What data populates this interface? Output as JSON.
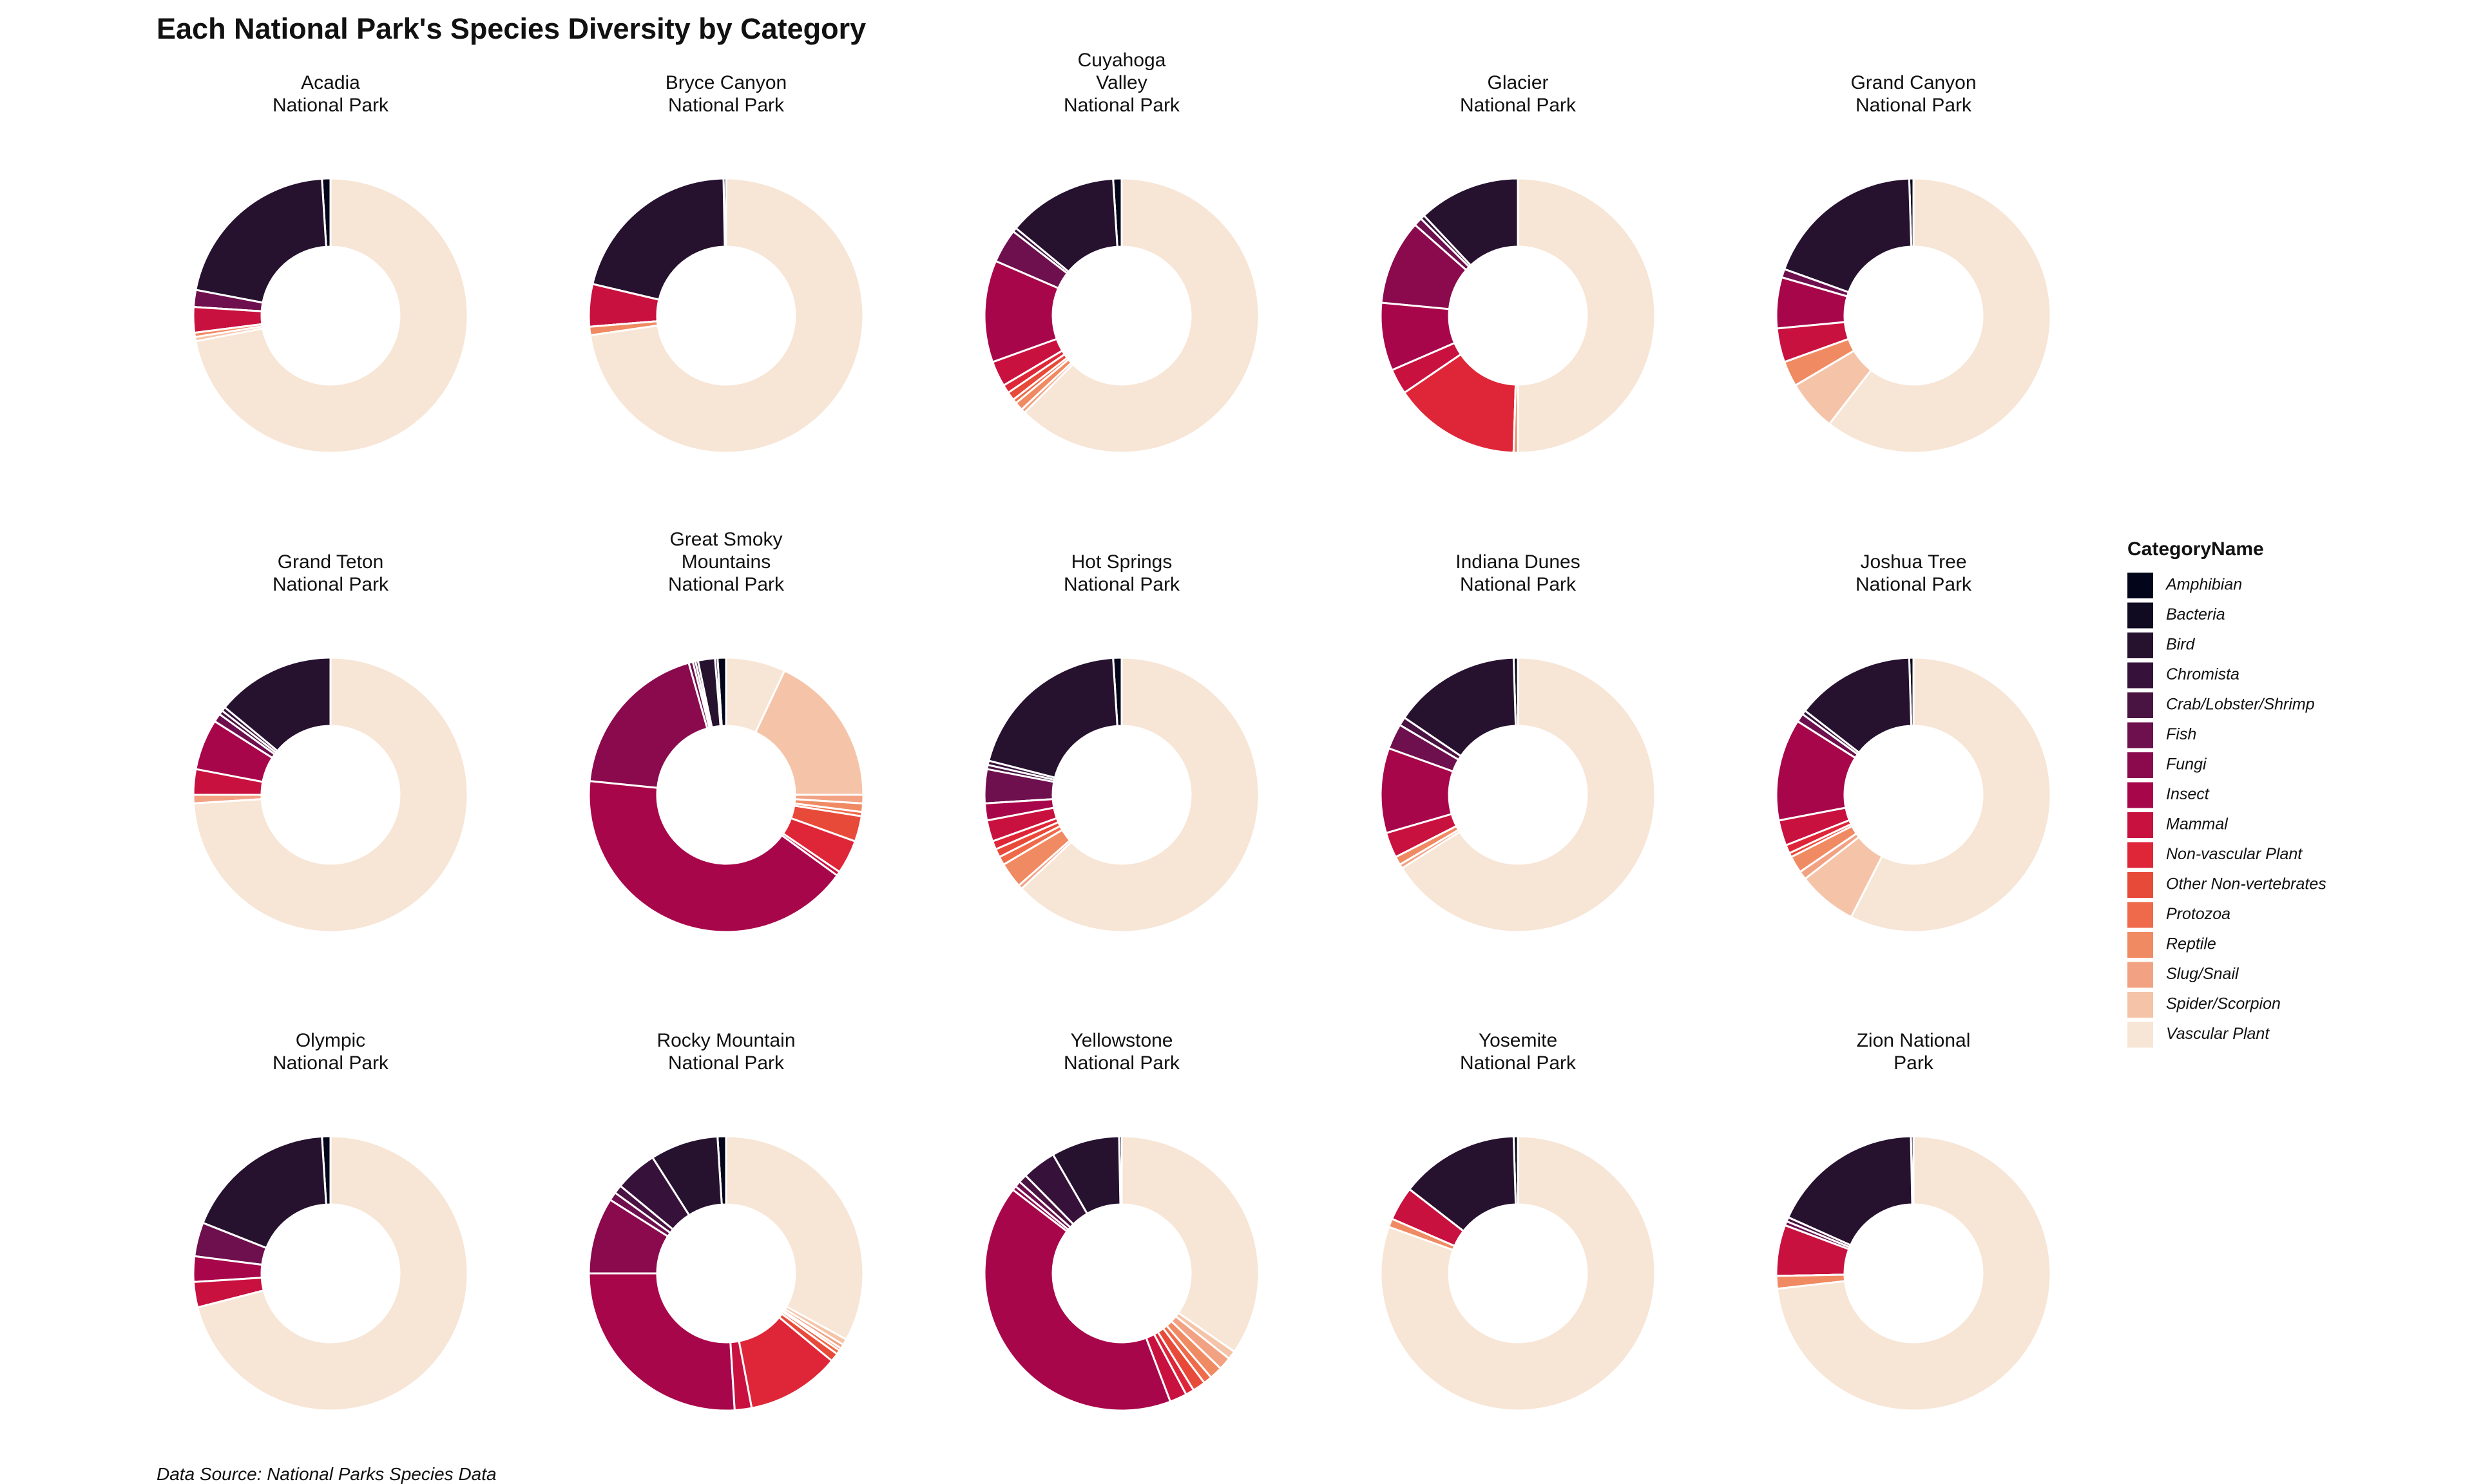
{
  "title": "Each National Park's Species Diversity by Category",
  "caption": "Data Source: National Parks Species Data",
  "legend_title": "CategoryName",
  "categories": [
    "Amphibian",
    "Bacteria",
    "Bird",
    "Chromista",
    "Crab/Lobster/Shrimp",
    "Fish",
    "Fungi",
    "Insect",
    "Mammal",
    "Non-vascular Plant",
    "Other Non-vertebrates",
    "Protozoa",
    "Reptile",
    "Slug/Snail",
    "Spider/Scorpion",
    "Vascular Plant"
  ],
  "colors": [
    "#03051A",
    "#110B21",
    "#26112F",
    "#36123A",
    "#4A1442",
    "#6E0F4E",
    "#8A0A4D",
    "#A8064A",
    "#C8113F",
    "#DE2638",
    "#E84A3A",
    "#EE6A4A",
    "#F08A62",
    "#F2A283",
    "#F5C4A8",
    "#F7E5D5"
  ],
  "chart_data": [
    {
      "type": "pie",
      "title": [
        "Acadia",
        "National Park"
      ],
      "values": [
        1,
        0,
        21,
        0,
        0,
        2,
        0,
        0,
        3,
        0,
        0,
        0,
        0.5,
        0,
        0.5,
        72
      ]
    },
    {
      "type": "pie",
      "title": [
        "Bryce Canyon",
        "National Park"
      ],
      "values": [
        0.3,
        0,
        21,
        0,
        0,
        0,
        0,
        0,
        5,
        0,
        0,
        0,
        1,
        0,
        0,
        72.7
      ]
    },
    {
      "type": "pie",
      "title": [
        "Cuyahoga",
        "Valley",
        "National Park"
      ],
      "values": [
        1,
        0,
        13,
        0.5,
        0,
        4,
        0,
        12,
        3,
        1,
        1,
        0.5,
        1,
        0.5,
        0,
        62.5
      ]
    },
    {
      "type": "pie",
      "title": [
        "Glacier",
        "National Park"
      ],
      "values": [
        0,
        0,
        12,
        0.5,
        0,
        1,
        10,
        8,
        3,
        15,
        0,
        0,
        0.5,
        0,
        0,
        50
      ]
    },
    {
      "type": "pie",
      "title": [
        "Grand Canyon",
        "National Park"
      ],
      "values": [
        0.5,
        0,
        19,
        0,
        0,
        1,
        0,
        6,
        4,
        0,
        0,
        0,
        3,
        0,
        6,
        60.5
      ]
    },
    {
      "type": "pie",
      "title": [
        "Grand Teton",
        "National Park"
      ],
      "values": [
        0,
        0,
        14,
        0.5,
        0.5,
        1,
        0,
        6,
        3,
        0,
        0,
        0,
        0,
        1,
        0,
        74
      ]
    },
    {
      "type": "pie",
      "title": [
        "Great Smoky",
        "Mountains",
        "National Park"
      ],
      "values": [
        1,
        0.3,
        2,
        0.3,
        0.3,
        0.5,
        19,
        41.6,
        0.5,
        4,
        3,
        0.5,
        1,
        1,
        18,
        7
      ]
    },
    {
      "type": "pie",
      "title": [
        "Hot Springs",
        "National Park"
      ],
      "values": [
        1,
        0,
        20,
        0.5,
        0.5,
        4,
        0,
        2,
        2.5,
        1,
        1,
        1,
        3,
        0.5,
        0,
        63
      ]
    },
    {
      "type": "pie",
      "title": [
        "Indiana Dunes",
        "National Park"
      ],
      "values": [
        0.5,
        0,
        15,
        0,
        1,
        3,
        0,
        10,
        3,
        0,
        0,
        0,
        1,
        0.5,
        0,
        66
      ]
    },
    {
      "type": "pie",
      "title": [
        "Joshua Tree",
        "National Park"
      ],
      "values": [
        0.5,
        0,
        14,
        0.5,
        0,
        1,
        0,
        12,
        3,
        1,
        0.5,
        0,
        2,
        1,
        7,
        57.5
      ]
    },
    {
      "type": "pie",
      "title": [
        "Olympic",
        "National Park"
      ],
      "values": [
        1,
        0,
        18,
        0,
        0,
        4,
        0,
        3,
        3,
        0,
        0,
        0,
        0,
        0,
        0,
        71
      ]
    },
    {
      "type": "pie",
      "title": [
        "Rocky Mountain",
        "National Park"
      ],
      "values": [
        1,
        0,
        8,
        5,
        1,
        1,
        9,
        26,
        2,
        11,
        1,
        0.5,
        0.3,
        0.5,
        0.7,
        33
      ]
    },
    {
      "type": "pie",
      "title": [
        "Yellowstone",
        "National Park"
      ],
      "values": [
        0.3,
        0,
        8,
        4,
        1,
        0.7,
        0.5,
        41,
        2,
        1,
        1.5,
        1,
        1.5,
        1.5,
        1,
        34.5
      ]
    },
    {
      "type": "pie",
      "title": [
        "Yosemite",
        "National Park"
      ],
      "values": [
        0.5,
        0,
        14,
        0,
        0,
        0,
        0,
        0,
        4,
        0,
        0,
        0,
        1,
        0,
        0,
        80.5
      ]
    },
    {
      "type": "pie",
      "title": [
        "Zion National",
        "Park"
      ],
      "values": [
        0.3,
        0,
        18,
        0,
        0.5,
        0.5,
        0,
        0,
        6,
        0,
        0,
        0,
        1.5,
        0,
        0,
        73.2
      ]
    }
  ]
}
